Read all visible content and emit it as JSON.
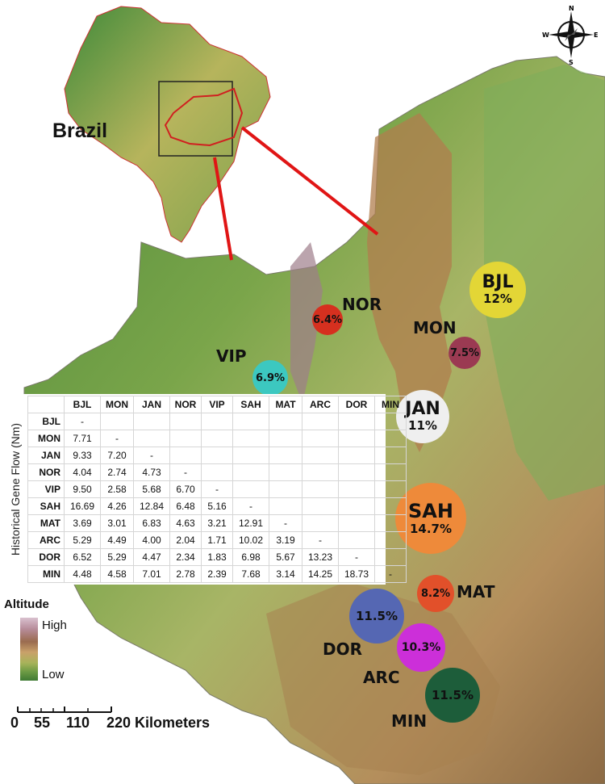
{
  "inset_label": "Brazil",
  "compass": {
    "n": "N",
    "s": "S",
    "e": "E",
    "w": "W"
  },
  "sites": [
    {
      "code": "BJL",
      "percent": "12%",
      "color": "#e3d636",
      "label_inside": true
    },
    {
      "code": "NOR",
      "percent": "6.4%",
      "color": "#d6301f",
      "label_inside": false
    },
    {
      "code": "MON",
      "percent": "7.5%",
      "color": "#9b3a52",
      "label_inside": false
    },
    {
      "code": "VIP",
      "percent": "6.9%",
      "color": "#3cc8c0",
      "label_inside": false
    },
    {
      "code": "JAN",
      "percent": "11%",
      "color": "#efefef",
      "label_inside": true
    },
    {
      "code": "SAH",
      "percent": "14.7%",
      "color": "#ee8a3a",
      "label_inside": true
    },
    {
      "code": "MAT",
      "percent": "8.2%",
      "color": "#e2502a",
      "label_inside": false
    },
    {
      "code": "DOR",
      "percent": "11.5%",
      "color": "#5567b3",
      "label_inside": false
    },
    {
      "code": "ARC",
      "percent": "10.3%",
      "color": "#cc2fd9",
      "label_inside": false
    },
    {
      "code": "MIN",
      "percent": "11.5%",
      "color": "#1d5d3a",
      "label_inside": false
    }
  ],
  "table": {
    "y_label": "Historical Gene Flow (Nm)",
    "columns": [
      "BJL",
      "MON",
      "JAN",
      "NOR",
      "VIP",
      "SAH",
      "MAT",
      "ARC",
      "DOR",
      "MIN"
    ],
    "rows": [
      {
        "name": "BJL",
        "values": [
          "-",
          "",
          "",
          "",
          "",
          "",
          "",
          "",
          "",
          ""
        ]
      },
      {
        "name": "MON",
        "values": [
          "7.71",
          "-",
          "",
          "",
          "",
          "",
          "",
          "",
          "",
          ""
        ]
      },
      {
        "name": "JAN",
        "values": [
          "9.33",
          "7.20",
          "-",
          "",
          "",
          "",
          "",
          "",
          "",
          ""
        ]
      },
      {
        "name": "NOR",
        "values": [
          "4.04",
          "2.74",
          "4.73",
          "-",
          "",
          "",
          "",
          "",
          "",
          ""
        ]
      },
      {
        "name": "VIP",
        "values": [
          "9.50",
          "2.58",
          "5.68",
          "6.70",
          "-",
          "",
          "",
          "",
          "",
          ""
        ]
      },
      {
        "name": "SAH",
        "values": [
          "16.69",
          "4.26",
          "12.84",
          "6.48",
          "5.16",
          "-",
          "",
          "",
          "",
          ""
        ]
      },
      {
        "name": "MAT",
        "values": [
          "3.69",
          "3.01",
          "6.83",
          "4.63",
          "3.21",
          "12.91",
          "-",
          "",
          "",
          ""
        ]
      },
      {
        "name": "ARC",
        "values": [
          "5.29",
          "4.49",
          "4.00",
          "2.04",
          "1.71",
          "10.02",
          "3.19",
          "-",
          "",
          ""
        ]
      },
      {
        "name": "DOR",
        "values": [
          "6.52",
          "5.29",
          "4.47",
          "2.34",
          "1.83",
          "6.98",
          "5.67",
          "13.23",
          "-",
          ""
        ]
      },
      {
        "name": "MIN",
        "values": [
          "4.48",
          "4.58",
          "7.01",
          "2.78",
          "2.39",
          "7.68",
          "3.14",
          "14.25",
          "18.73",
          "-"
        ]
      }
    ]
  },
  "legend": {
    "title": "Altitude",
    "high": "High",
    "low": "Low"
  },
  "scale_bar": {
    "labels": [
      "0",
      "55",
      "110",
      "220 Kilometers"
    ]
  }
}
